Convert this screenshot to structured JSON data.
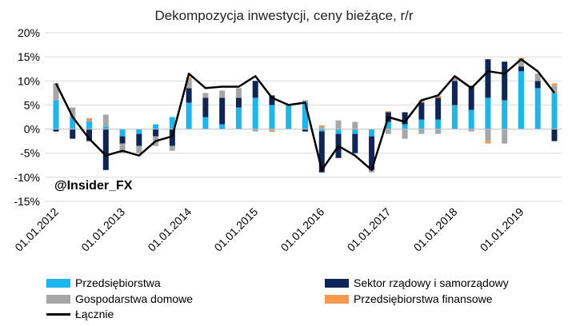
{
  "colors": {
    "firms": "#1BB6EC",
    "government": "#0F2556",
    "households": "#A6A6A6",
    "financial": "#F59A4C",
    "total": "#000000"
  },
  "watermark": "@Insider_FX",
  "chart_data": {
    "type": "bar",
    "title": "Dekompozycja inwestycji, ceny bieżące, r/r",
    "xlabel": "",
    "ylabel": "",
    "ylim": [
      -15,
      20
    ],
    "yticks": [
      "-15%",
      "-10%",
      "-5%",
      "0%",
      "5%",
      "10%",
      "15%",
      "20%"
    ],
    "xtick_labels": [
      "01.01.2012",
      "01.01.2013",
      "01.01.2014",
      "01.01.2015",
      "01.01.2016",
      "01.01.2017",
      "01.01.2018",
      "01.01.2019"
    ],
    "grid": true,
    "stacked": true,
    "legend_position": "bottom",
    "categories": [
      "2012Q1",
      "2012Q2",
      "2012Q3",
      "2012Q4",
      "2013Q1",
      "2013Q2",
      "2013Q3",
      "2013Q4",
      "2014Q1",
      "2014Q2",
      "2014Q3",
      "2014Q4",
      "2015Q1",
      "2015Q2",
      "2015Q3",
      "2015Q4",
      "2016Q1",
      "2016Q2",
      "2016Q3",
      "2016Q4",
      "2017Q1",
      "2017Q2",
      "2017Q3",
      "2017Q4",
      "2018Q1",
      "2018Q2",
      "2018Q3",
      "2018Q4",
      "2019Q1",
      "2019Q2",
      "2019Q3"
    ],
    "series": [
      {
        "name": "Przedsiębiorstwa",
        "key": "firms",
        "values": [
          6,
          2.5,
          1.5,
          0.5,
          -1.5,
          -1,
          1,
          2.5,
          5.5,
          2.5,
          1,
          4.5,
          6.5,
          5,
          5,
          5.5,
          -0.5,
          -1,
          -1,
          -1.5,
          1.5,
          1,
          2,
          2,
          5,
          4,
          6.5,
          6,
          12,
          8.5,
          7.5
        ]
      },
      {
        "name": "Sektor rządowy i samorządowy",
        "key": "government",
        "values": [
          -0.5,
          -2,
          -2.5,
          -8.5,
          -1.5,
          -2.5,
          -1.5,
          -3.5,
          3,
          4,
          5.5,
          2,
          3.5,
          2,
          0,
          -0.5,
          -8.5,
          -5,
          -4,
          -7,
          2,
          2.5,
          3.5,
          4.5,
          5,
          5,
          8,
          8,
          1,
          1.5,
          -2.5
        ]
      },
      {
        "name": "Gospodarstwa domowe",
        "key": "households",
        "values": [
          3.5,
          2,
          0.5,
          2.5,
          -2,
          -1.5,
          -2,
          -1,
          2,
          1,
          1.5,
          2,
          -0.5,
          -0.3,
          0.2,
          0.5,
          0.5,
          1.8,
          1.5,
          -0.5,
          -1,
          -2,
          -1,
          -1,
          0.5,
          -0.5,
          -2.5,
          -3,
          1.5,
          1.5,
          1.5
        ]
      },
      {
        "name": "Przedsiębiorstwa finansowe",
        "key": "financial",
        "values": [
          0,
          0,
          0.3,
          0,
          0,
          0,
          0,
          0,
          0.3,
          0,
          0,
          0,
          0,
          -0.3,
          0,
          0,
          0.3,
          0,
          0,
          0,
          0.2,
          0,
          0.5,
          0.5,
          0.3,
          0,
          -0.5,
          0,
          0.3,
          0,
          0.5
        ]
      },
      {
        "name": "Łącznie",
        "key": "total",
        "kind": "line",
        "values": [
          9.5,
          2.5,
          -2,
          -5.5,
          -4.5,
          -5.5,
          -2.5,
          -1.5,
          11.5,
          8.5,
          8.8,
          8.8,
          11,
          6.5,
          5,
          5.5,
          -8.5,
          -3.5,
          -5.5,
          -8.5,
          2.5,
          1.5,
          6,
          7,
          11,
          8.5,
          12,
          11.5,
          14.5,
          12,
          7.5
        ]
      }
    ]
  }
}
